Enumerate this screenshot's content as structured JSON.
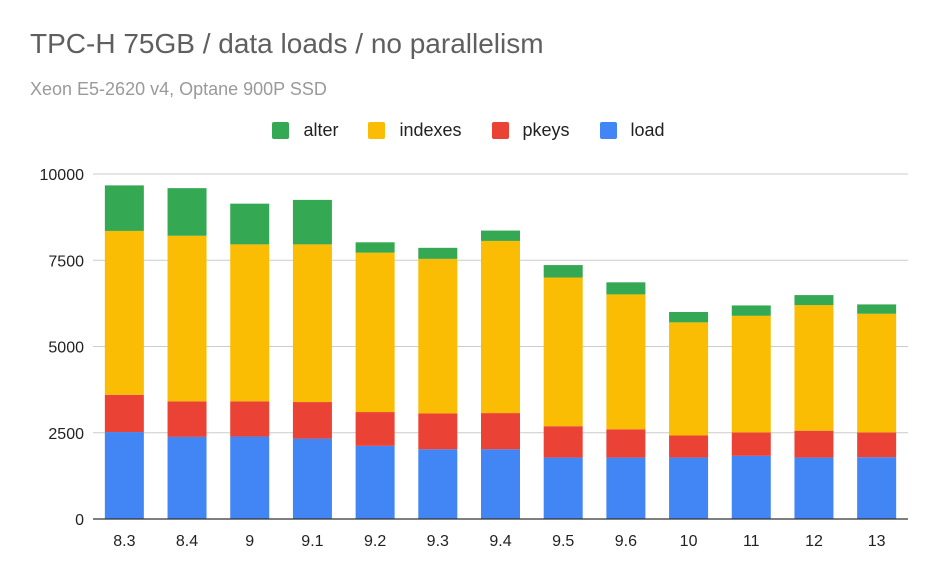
{
  "chart_data": {
    "type": "bar",
    "stacked": true,
    "title": "TPC-H 75GB / data loads / no parallelism",
    "subtitle": "Xeon E5-2620 v4, Optane 900P SSD",
    "categories": [
      "8.3",
      "8.4",
      "9",
      "9.1",
      "9.2",
      "9.3",
      "9.4",
      "9.5",
      "9.6",
      "10",
      "11",
      "12",
      "13"
    ],
    "series": [
      {
        "name": "load",
        "color": "#4285f4",
        "values": [
          2520,
          2380,
          2390,
          2330,
          2120,
          2020,
          2020,
          1780,
          1780,
          1780,
          1830,
          1780,
          1790
        ]
      },
      {
        "name": "pkeys",
        "color": "#ea4335",
        "values": [
          1080,
          1030,
          1020,
          1060,
          980,
          1040,
          1050,
          910,
          820,
          640,
          680,
          780,
          720
        ]
      },
      {
        "name": "indexes",
        "color": "#fbbc04",
        "values": [
          4750,
          4800,
          4550,
          4570,
          4620,
          4480,
          4990,
          4310,
          3910,
          3280,
          3380,
          3640,
          3440
        ]
      },
      {
        "name": "alter",
        "color": "#34a853",
        "values": [
          1320,
          1380,
          1180,
          1290,
          300,
          320,
          300,
          360,
          350,
          300,
          300,
          290,
          270
        ]
      }
    ],
    "legend_order": [
      "alter",
      "indexes",
      "pkeys",
      "load"
    ],
    "legend_position": "top",
    "ylim": [
      0,
      10000
    ],
    "yticks": [
      0,
      2500,
      5000,
      7500,
      10000
    ],
    "grid": true
  }
}
